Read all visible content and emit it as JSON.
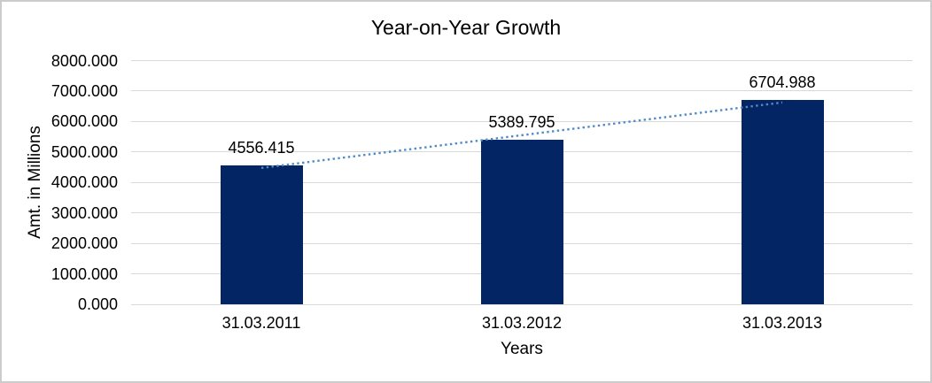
{
  "frame": {
    "border_color": "#cccccc"
  },
  "chart_data": {
    "type": "bar",
    "title": "Year-on-Year Growth",
    "xlabel": "Years",
    "ylabel": "Amt. in Millions",
    "categories": [
      "31.03.2011",
      "31.03.2012",
      "31.03.2013"
    ],
    "values": [
      4556.415,
      5389.795,
      6704.988
    ],
    "value_labels": [
      "4556.415",
      "5389.795",
      "6704.988"
    ],
    "ylim": [
      0,
      8000
    ],
    "ytick_step": 1000,
    "ytick_labels": [
      "0.000",
      "1000.000",
      "2000.000",
      "3000.000",
      "4000.000",
      "5000.000",
      "6000.000",
      "7000.000",
      "8000.000"
    ],
    "grid": true,
    "legend": "none",
    "bar_color": "#032563",
    "gridline_color": "#d9d9d9",
    "text_color": "#000000",
    "trendline": {
      "kind": "linear",
      "style": "dotted",
      "color": "#4e8bc8"
    }
  }
}
